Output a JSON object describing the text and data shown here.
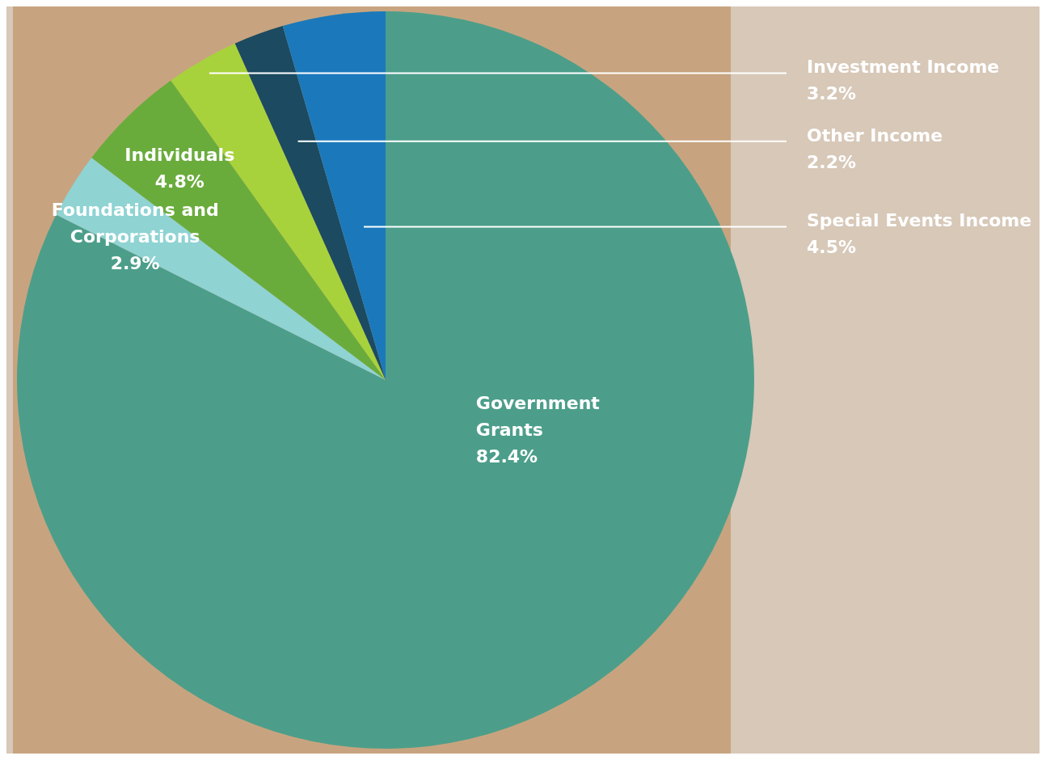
{
  "chart_data": {
    "type": "pie",
    "categories": [
      "Government Grants",
      "Foundations and Corporations",
      "Individuals",
      "Investment Income",
      "Other Income",
      "Special Events Income"
    ],
    "values": [
      82.4,
      2.9,
      4.8,
      3.2,
      2.2,
      4.5
    ],
    "value_labels": [
      "82.4%",
      "2.9%",
      "4.8%",
      "3.2%",
      "2.2%",
      "4.5%"
    ],
    "colors": [
      "#4c9e8a",
      "#8fd3d3",
      "#6aac3c",
      "#a8d23c",
      "#1c4a60",
      "#1b79bb"
    ],
    "legend": false
  }
}
